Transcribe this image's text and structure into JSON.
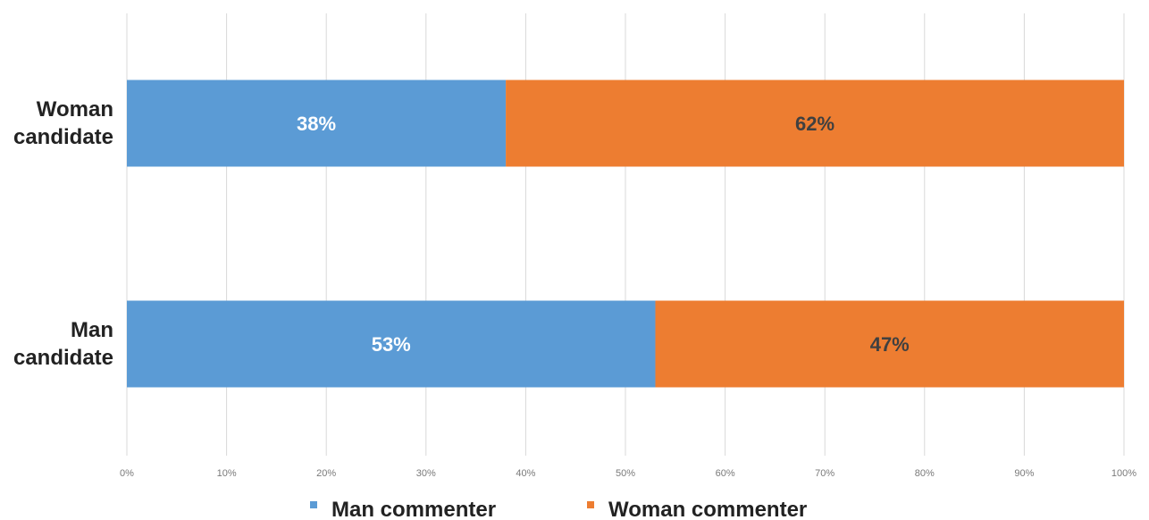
{
  "chart_data": {
    "type": "bar",
    "orientation": "horizontal",
    "stacked": true,
    "percent": true,
    "categories": [
      "Woman candidate",
      "Man candidate"
    ],
    "category_lines": [
      [
        "Woman",
        "candidate"
      ],
      [
        "Man",
        "candidate"
      ]
    ],
    "series": [
      {
        "name": "Man commenter",
        "values": [
          38,
          53
        ],
        "labels": [
          "38%",
          "53%"
        ],
        "color": "#5b9bd5",
        "label_color": "#ffffff"
      },
      {
        "name": "Woman commenter",
        "values": [
          62,
          47
        ],
        "labels": [
          "62%",
          "47%"
        ],
        "color": "#ed7d31",
        "label_color": "#404040"
      }
    ],
    "xlim": [
      0,
      100
    ],
    "xticks": [
      0,
      10,
      20,
      30,
      40,
      50,
      60,
      70,
      80,
      90,
      100
    ],
    "xtick_labels": [
      "0%",
      "10%",
      "20%",
      "30%",
      "40%",
      "50%",
      "60%",
      "70%",
      "80%",
      "90%",
      "100%"
    ],
    "grid": true,
    "gridline_color": "#d9d9d9",
    "legend_position": "bottom"
  }
}
